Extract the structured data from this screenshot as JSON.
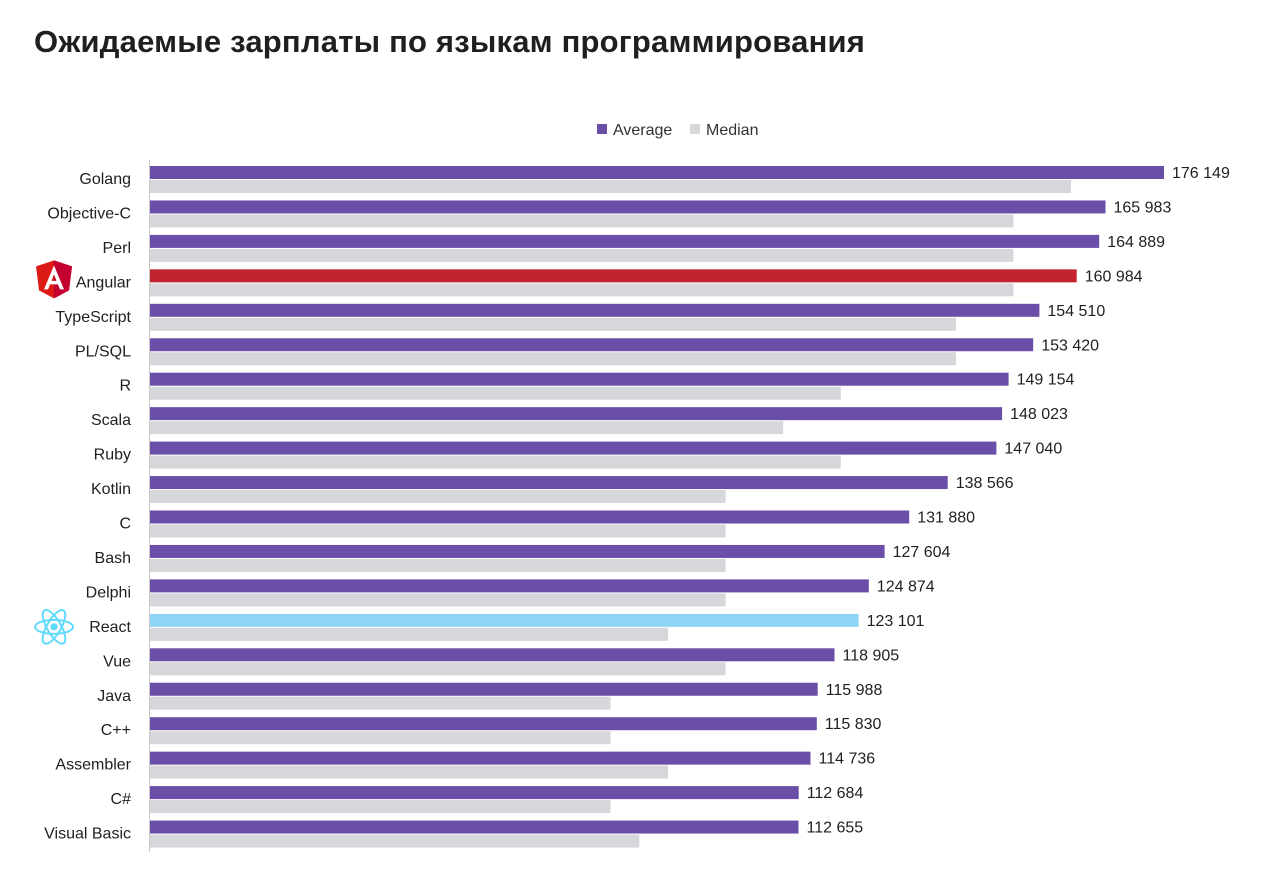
{
  "title": "Ожидаемые зарплаты по языкам программирования",
  "colors": {
    "average": "#6b4ea8",
    "median": "#d6d7da",
    "angular_highlight": "#c3232f",
    "react_highlight": "#8fd3f5",
    "axis": "#c8c8c8",
    "text": "#1f1f1f"
  },
  "chart_data": {
    "type": "bar",
    "orientation": "horizontal",
    "title": "Ожидаемые зарплаты по языкам программирования",
    "legend_position": "top-center",
    "grid": false,
    "categories": [
      "Golang",
      "Objective-C",
      "Perl",
      "Angular",
      "TypeScript",
      "PL/SQL",
      "R",
      "Scala",
      "Ruby",
      "Kotlin",
      "C",
      "Bash",
      "Delphi",
      "React",
      "Vue",
      "Java",
      "C++",
      "Assembler",
      "C#",
      "Visual Basic"
    ],
    "series": [
      {
        "name": "Average",
        "values": [
          176149,
          165983,
          164889,
          160984,
          154510,
          153420,
          149154,
          148023,
          147040,
          138566,
          131880,
          127604,
          124874,
          123101,
          118905,
          115988,
          115830,
          114736,
          112684,
          112655
        ],
        "labels": [
          "176 149",
          "165 983",
          "164 889",
          "160 984",
          "154 510",
          "153 420",
          "149 154",
          "148 023",
          "147 040",
          "138 566",
          "131 880",
          "127 604",
          "124 874",
          "123 101",
          "118 905",
          "115 988",
          "115 830",
          "114 736",
          "112 684",
          "112 655"
        ]
      },
      {
        "name": "Median",
        "values": [
          160000,
          150000,
          150000,
          150000,
          140000,
          140000,
          120000,
          110000,
          120000,
          100000,
          100000,
          100000,
          100000,
          90000,
          100000,
          80000,
          80000,
          90000,
          80000,
          85000
        ]
      }
    ],
    "highlighted": [
      {
        "category": "Angular",
        "icon": "angular-logo-icon",
        "color": "#c3232f"
      },
      {
        "category": "React",
        "icon": "react-logo-icon",
        "color": "#8fd3f5"
      }
    ],
    "xlim": [
      0,
      176149
    ]
  }
}
